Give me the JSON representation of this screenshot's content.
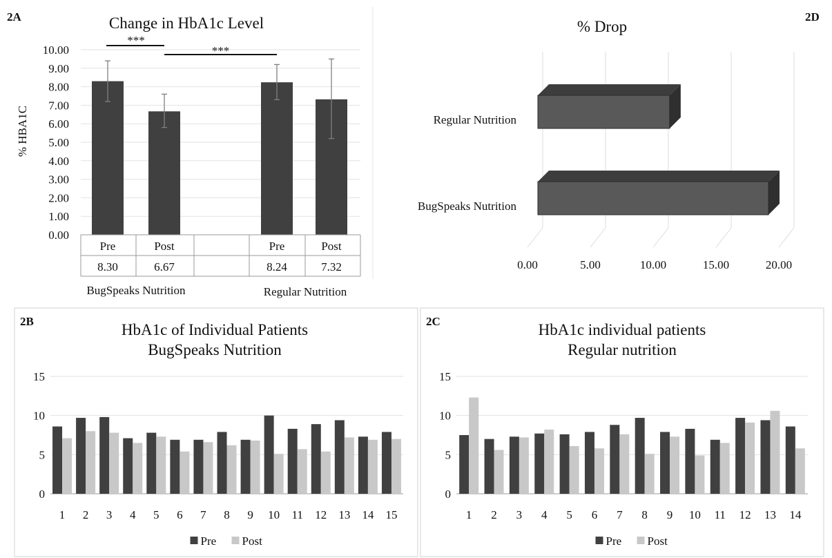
{
  "chart_data": [
    {
      "id": "2A",
      "type": "bar",
      "panel_label": "2A",
      "title": "Change in HbA1c Level",
      "ylabel": "% HBA1C",
      "ylim": [
        0,
        10
      ],
      "yticks": [
        "0.00",
        "1.00",
        "2.00",
        "3.00",
        "4.00",
        "5.00",
        "6.00",
        "7.00",
        "8.00",
        "9.00",
        "10.00"
      ],
      "categories": [
        "Pre",
        "Post",
        "",
        "Pre",
        "Post"
      ],
      "values": [
        8.3,
        6.67,
        null,
        8.24,
        7.32
      ],
      "value_labels": [
        "8.30",
        "6.67",
        "",
        "8.24",
        "7.32"
      ],
      "error_low": [
        7.2,
        5.8,
        null,
        7.3,
        5.2
      ],
      "error_high": [
        9.4,
        7.6,
        null,
        9.2,
        9.5
      ],
      "groups": [
        "BugSpeaks Nutrition",
        "Regular Nutrition"
      ],
      "significance": [
        {
          "from": 0,
          "to": 1,
          "label": "***"
        },
        {
          "from": 1,
          "to": 3,
          "label": "***"
        }
      ],
      "color": "#404040",
      "grid": true
    },
    {
      "id": "2D",
      "type": "bar",
      "orientation": "horizontal",
      "panel_label": "2D",
      "title": "% Drop",
      "categories": [
        "Regular Nutrition",
        "BugSpeaks Nutrition"
      ],
      "values": [
        11.2,
        19.6
      ],
      "xlim": [
        0,
        20
      ],
      "xticks": [
        "0.00",
        "5.00",
        "10.00",
        "15.00",
        "20.00"
      ],
      "color": "#595959",
      "grid": true
    },
    {
      "id": "2B",
      "type": "bar",
      "panel_label": "2B",
      "title": [
        "HbA1c of Individual Patients",
        "BugSpeaks Nutrition"
      ],
      "categories": [
        "1",
        "2",
        "3",
        "4",
        "5",
        "6",
        "7",
        "8",
        "9",
        "10",
        "11",
        "12",
        "13",
        "14",
        "15"
      ],
      "series": [
        {
          "name": "Pre",
          "color": "#404040",
          "values": [
            8.6,
            9.7,
            9.8,
            7.1,
            7.8,
            6.9,
            6.9,
            7.9,
            6.9,
            10.0,
            8.3,
            8.9,
            9.4,
            7.3,
            7.9
          ]
        },
        {
          "name": "Post",
          "color": "#c8c8c8",
          "values": [
            7.1,
            8.0,
            7.8,
            6.5,
            7.3,
            5.4,
            6.6,
            6.2,
            6.8,
            5.1,
            5.7,
            5.4,
            7.2,
            6.9,
            7.0
          ]
        }
      ],
      "ylim": [
        0,
        15
      ],
      "yticks": [
        "0",
        "5",
        "10",
        "15"
      ],
      "legend": "bottom",
      "grid": true
    },
    {
      "id": "2C",
      "type": "bar",
      "panel_label": "2C",
      "title": [
        "HbA1c individual patients",
        "Regular nutrition"
      ],
      "categories": [
        "1",
        "2",
        "3",
        "4",
        "5",
        "6",
        "7",
        "8",
        "9",
        "10",
        "11",
        "12",
        "13",
        "14"
      ],
      "series": [
        {
          "name": "Pre",
          "color": "#404040",
          "values": [
            7.5,
            7.0,
            7.3,
            7.7,
            7.6,
            7.9,
            8.8,
            9.7,
            7.9,
            8.3,
            6.9,
            9.7,
            9.4,
            8.6
          ]
        },
        {
          "name": "Post",
          "color": "#c8c8c8",
          "values": [
            12.3,
            5.6,
            7.2,
            8.2,
            6.1,
            5.8,
            7.6,
            5.1,
            7.3,
            4.9,
            6.5,
            9.1,
            10.6,
            5.8
          ]
        }
      ],
      "ylim": [
        0,
        15
      ],
      "yticks": [
        "0",
        "5",
        "10",
        "15"
      ],
      "legend": "bottom",
      "grid": true
    }
  ]
}
